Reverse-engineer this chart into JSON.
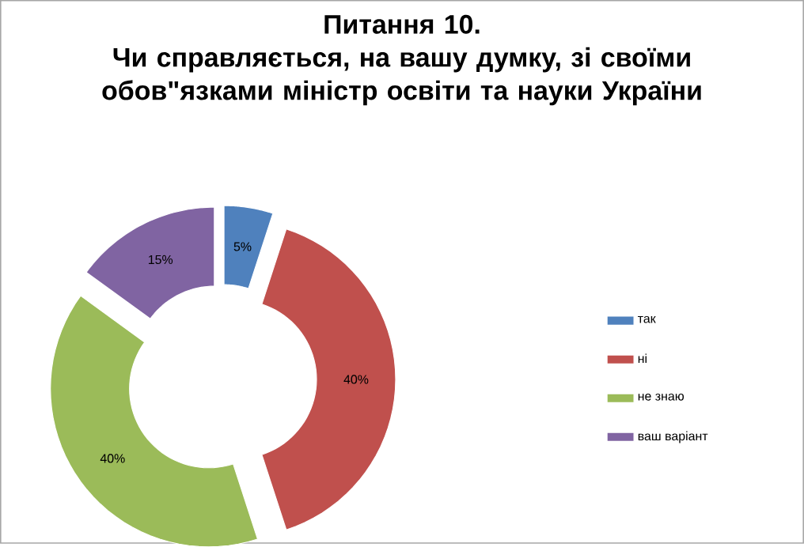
{
  "chart_data": {
    "type": "donut",
    "title": "Питання 10.\nЧи справляється, на вашу думку, зі своїми обов\"язками  міністр освіти та науки України",
    "categories": [
      "так",
      "ні",
      "не знаю",
      "ваш варіант"
    ],
    "values": [
      5,
      40,
      40,
      15
    ],
    "colors": [
      "#4f81bd",
      "#c0504d",
      "#9bbb59",
      "#8064a2"
    ],
    "value_labels": [
      "5%",
      "40%",
      "40%",
      "15%"
    ],
    "legend": "right"
  }
}
